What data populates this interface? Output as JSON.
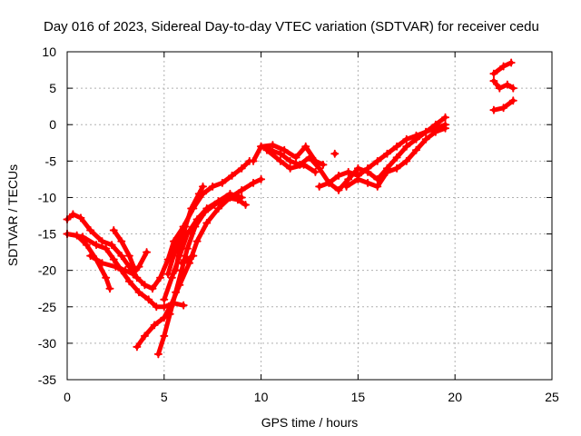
{
  "chart_data": {
    "type": "scatter",
    "title": "Day 016 of 2023, Sidereal Day-to-day VTEC variation (SDTVAR) for receiver cedu",
    "xlabel": "GPS time / hours",
    "ylabel": "SDTVAR / TECUs",
    "xlim": [
      0,
      25
    ],
    "ylim": [
      -35,
      10
    ],
    "xticks": [
      0,
      5,
      10,
      15,
      20,
      25
    ],
    "yticks": [
      10,
      5,
      0,
      -5,
      -10,
      -15,
      -20,
      -25,
      -30,
      -35
    ],
    "grid": true,
    "marker_color": "#ff0000",
    "series": [
      {
        "points": [
          [
            0,
            -13
          ],
          [
            0.3,
            -12.3
          ],
          [
            0.7,
            -12.8
          ],
          [
            1.2,
            -14.5
          ],
          [
            1.8,
            -16
          ],
          [
            2.3,
            -16.5
          ],
          [
            2.8,
            -18
          ],
          [
            3.2,
            -19.5
          ],
          [
            3.6,
            -21
          ],
          [
            4,
            -22
          ],
          [
            4.4,
            -22.5
          ],
          [
            4.8,
            -21
          ],
          [
            5.2,
            -18.5
          ],
          [
            5.5,
            -16
          ],
          [
            6,
            -14
          ]
        ]
      },
      {
        "points": [
          [
            0,
            -15
          ],
          [
            0.5,
            -15.2
          ],
          [
            1,
            -16.5
          ],
          [
            1.5,
            -18.5
          ],
          [
            2,
            -21
          ],
          [
            2.2,
            -22.5
          ]
        ]
      },
      {
        "points": [
          [
            0,
            -15
          ],
          [
            0.8,
            -15.4
          ],
          [
            1.5,
            -16.5
          ],
          [
            2,
            -17
          ],
          [
            2.4,
            -18.5
          ],
          [
            2.8,
            -20
          ],
          [
            3.2,
            -21.5
          ],
          [
            3.7,
            -23
          ],
          [
            4.2,
            -24
          ],
          [
            4.6,
            -25
          ],
          [
            5,
            -25
          ],
          [
            5.5,
            -24.5
          ],
          [
            6,
            -24.8
          ]
        ]
      },
      {
        "points": [
          [
            1.2,
            -18
          ],
          [
            1.8,
            -19
          ],
          [
            2.5,
            -19.5
          ],
          [
            3,
            -20
          ],
          [
            3.4,
            -20.5
          ],
          [
            3.7,
            -19.5
          ],
          [
            4.1,
            -17.5
          ]
        ]
      },
      {
        "points": [
          [
            2.4,
            -14.5
          ],
          [
            2.8,
            -16
          ],
          [
            3.2,
            -18
          ],
          [
            3.5,
            -20
          ]
        ]
      },
      {
        "points": [
          [
            3.6,
            -30.5
          ],
          [
            4,
            -29
          ],
          [
            4.5,
            -27.5
          ],
          [
            5,
            -26.5
          ],
          [
            5.4,
            -24.5
          ],
          [
            5.8,
            -22
          ],
          [
            6.3,
            -19
          ],
          [
            6.7,
            -16
          ],
          [
            7.2,
            -13.5
          ],
          [
            7.8,
            -11.5
          ],
          [
            8.4,
            -10
          ],
          [
            9,
            -9
          ],
          [
            9.6,
            -8
          ],
          [
            10,
            -7.5
          ]
        ]
      },
      {
        "points": [
          [
            4.7,
            -31.5
          ],
          [
            5,
            -29
          ],
          [
            5.3,
            -26
          ],
          [
            5.6,
            -23
          ],
          [
            5.9,
            -20
          ],
          [
            6.2,
            -17
          ],
          [
            6.6,
            -14
          ],
          [
            7.1,
            -12
          ],
          [
            7.6,
            -11
          ],
          [
            8.2,
            -10
          ],
          [
            8.8,
            -10.3
          ],
          [
            9.2,
            -11
          ]
        ]
      },
      {
        "points": [
          [
            5,
            -24
          ],
          [
            5.4,
            -21
          ],
          [
            5.8,
            -18
          ],
          [
            6.2,
            -15
          ],
          [
            6.7,
            -13
          ],
          [
            7.2,
            -11.5
          ],
          [
            7.8,
            -10.5
          ],
          [
            8.4,
            -9.5
          ],
          [
            9,
            -10
          ]
        ]
      },
      {
        "points": [
          [
            5.2,
            -20.5
          ],
          [
            5.6,
            -17
          ],
          [
            6,
            -14
          ],
          [
            6.5,
            -11.5
          ],
          [
            7,
            -9.5
          ],
          [
            7.5,
            -8.5
          ],
          [
            8,
            -8
          ],
          [
            8.5,
            -7
          ],
          [
            9,
            -6
          ],
          [
            9.4,
            -5
          ]
        ]
      },
      {
        "points": [
          [
            5.6,
            -20
          ],
          [
            5.8,
            -17
          ],
          [
            6.1,
            -14
          ],
          [
            6.4,
            -11.5
          ],
          [
            6.8,
            -9.5
          ],
          [
            7,
            -8.5
          ]
        ]
      },
      {
        "points": [
          [
            5.9,
            -19
          ],
          [
            6.2,
            -18.5
          ],
          [
            6.5,
            -18
          ]
        ]
      },
      {
        "points": [
          [
            9.6,
            -5
          ],
          [
            10,
            -3
          ],
          [
            10.5,
            -3.5
          ],
          [
            11,
            -4
          ],
          [
            11.5,
            -5
          ],
          [
            12,
            -5.5
          ],
          [
            12.5,
            -4.5
          ],
          [
            13,
            -6
          ],
          [
            13.5,
            -8
          ],
          [
            14,
            -9
          ],
          [
            14.5,
            -7.5
          ],
          [
            15,
            -6
          ],
          [
            15.5,
            -6.5
          ],
          [
            16,
            -7.5
          ],
          [
            16.5,
            -6
          ],
          [
            17,
            -4.5
          ],
          [
            17.5,
            -3
          ],
          [
            18,
            -2
          ],
          [
            18.5,
            -1
          ],
          [
            19,
            -0.5
          ],
          [
            19.5,
            0
          ]
        ]
      },
      {
        "points": [
          [
            10,
            -3
          ],
          [
            10.6,
            -2.8
          ],
          [
            11.2,
            -3.5
          ],
          [
            11.8,
            -4.5
          ],
          [
            12.3,
            -3
          ],
          [
            12.8,
            -5
          ],
          [
            13.2,
            -5.5
          ]
        ]
      },
      {
        "points": [
          [
            10.3,
            -3.5
          ],
          [
            11,
            -5
          ],
          [
            11.5,
            -6
          ],
          [
            12.2,
            -5.5
          ],
          [
            12.8,
            -6.5
          ]
        ]
      },
      {
        "points": [
          [
            13,
            -8.5
          ],
          [
            13.5,
            -8
          ],
          [
            14,
            -7
          ],
          [
            14.5,
            -6.5
          ],
          [
            15,
            -7
          ],
          [
            15.5,
            -6
          ],
          [
            16,
            -5
          ],
          [
            16.5,
            -4
          ],
          [
            17,
            -3
          ],
          [
            17.5,
            -2
          ],
          [
            18,
            -1.5
          ],
          [
            18.5,
            -1
          ],
          [
            19,
            0
          ],
          [
            19.5,
            1
          ]
        ]
      },
      {
        "points": [
          [
            14.4,
            -8.5
          ],
          [
            15,
            -7.5
          ],
          [
            15.5,
            -8
          ],
          [
            16,
            -8.5
          ],
          [
            16.5,
            -6.5
          ],
          [
            17,
            -6
          ],
          [
            17.5,
            -5
          ],
          [
            18,
            -3.5
          ],
          [
            18.5,
            -2
          ],
          [
            19,
            -1
          ],
          [
            19.5,
            -0.5
          ]
        ]
      },
      {
        "points": [
          [
            13.8,
            -4
          ]
        ]
      },
      {
        "points": [
          [
            22,
            7
          ],
          [
            22.5,
            8
          ],
          [
            22.9,
            8.5
          ]
        ]
      },
      {
        "points": [
          [
            22,
            6
          ],
          [
            22.3,
            5
          ],
          [
            22.7,
            5.5
          ],
          [
            23,
            5
          ]
        ]
      },
      {
        "points": [
          [
            22,
            2
          ],
          [
            22.5,
            2.3
          ],
          [
            23,
            3.3
          ]
        ]
      }
    ]
  }
}
